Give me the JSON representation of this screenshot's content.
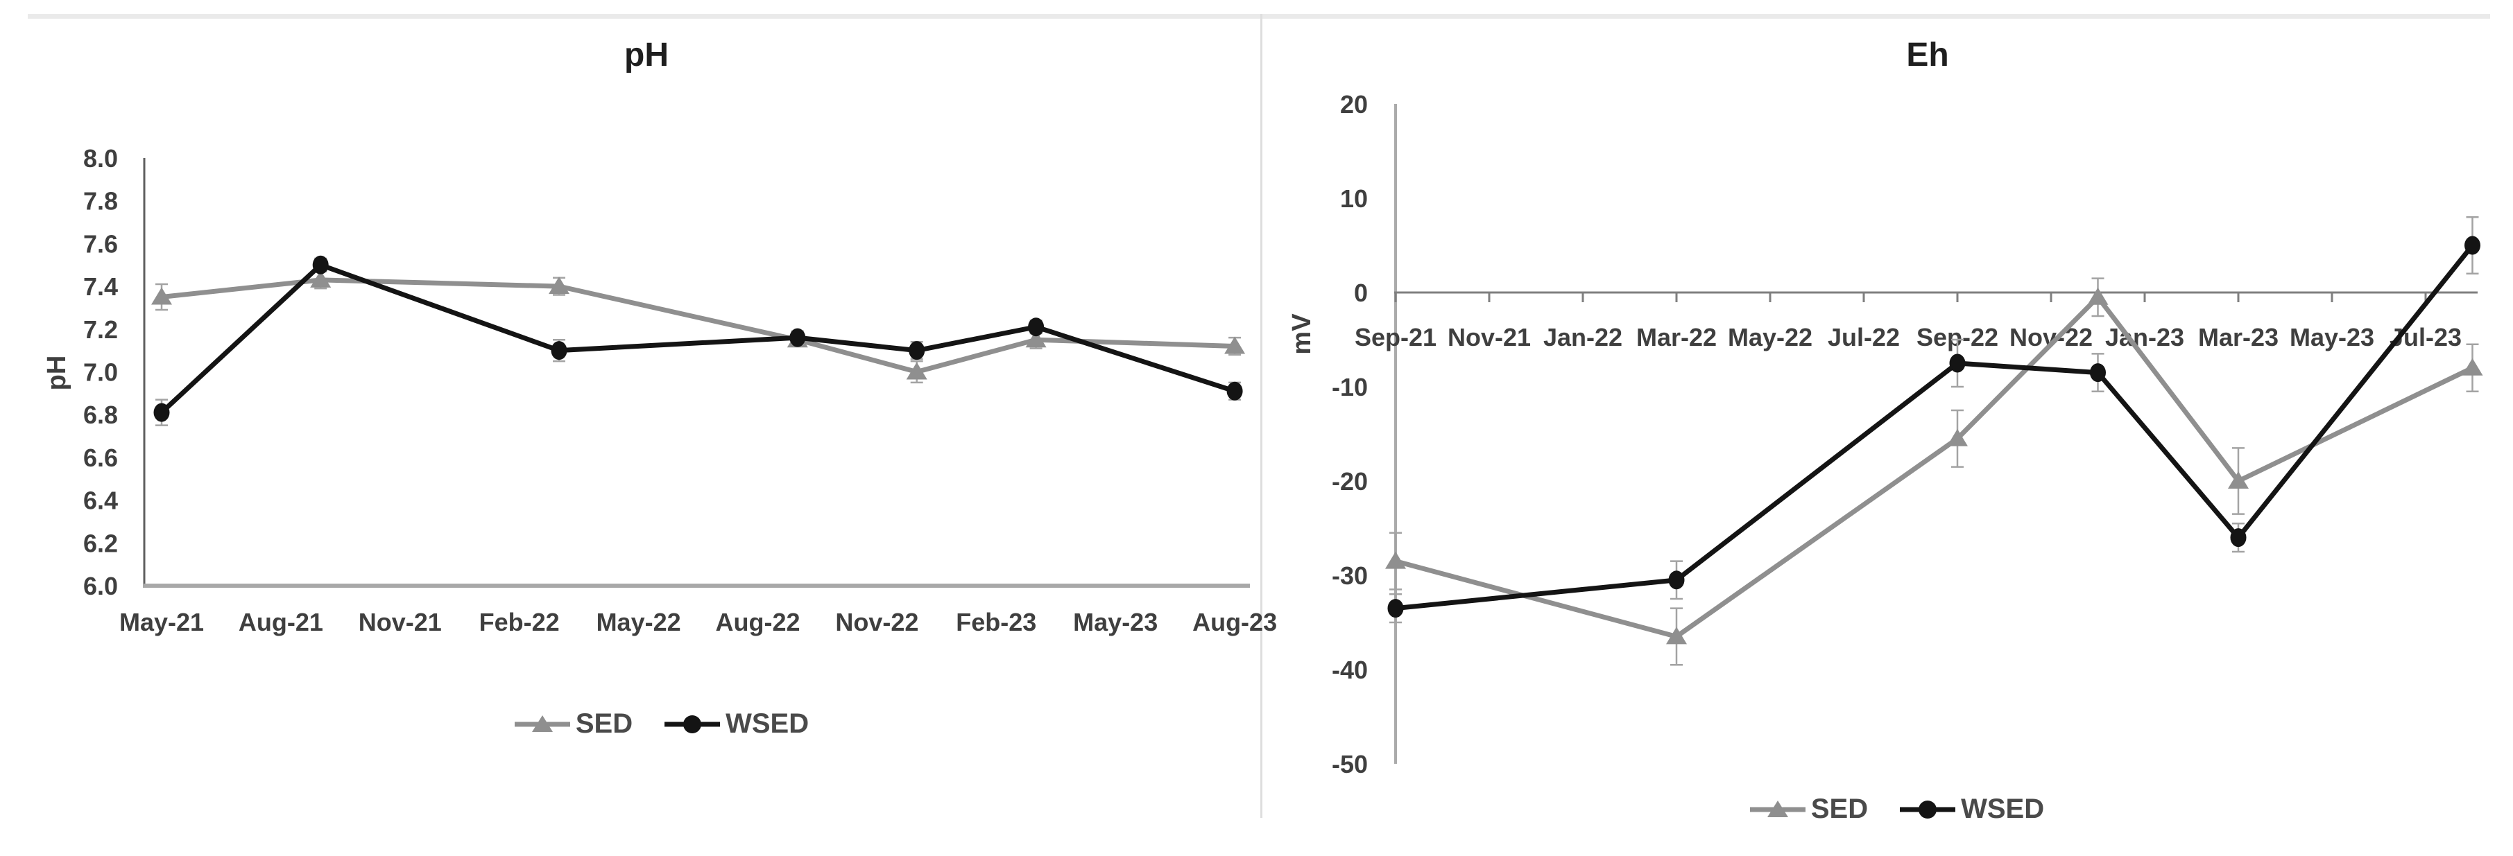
{
  "page": {
    "background": "#ffffff",
    "top_border_color": "#eaeaea",
    "panel_divider_color": "#dedede",
    "tick_label_color": "#3f3f3f",
    "title_color": "#1f1f1f",
    "error_bar_color": "#a3a3a3"
  },
  "chart_data": [
    {
      "type": "line",
      "title": "pH",
      "y_axis_title": "pH",
      "xlabel": "",
      "ylim": [
        6.0,
        8.0
      ],
      "y_tick_step": 0.2,
      "grid": false,
      "legend_position": "bottom",
      "error_bars": true,
      "y_tick_labels": [
        "8.0",
        "7.8",
        "7.6",
        "7.4",
        "7.2",
        "7.0",
        "6.8",
        "6.6",
        "6.4",
        "6.2",
        "6.0"
      ],
      "x_tick_labels": [
        "May-21",
        "Aug-21",
        "Nov-21",
        "Feb-22",
        "May-22",
        "Aug-22",
        "Nov-22",
        "Feb-23",
        "May-23",
        "Aug-23"
      ],
      "x": [
        "May-21",
        "Sep-21",
        "Mar-22",
        "Sep-22",
        "Dec-22",
        "Mar-23",
        "Aug-23"
      ],
      "series": [
        {
          "name": "SED",
          "color": "#8f8f8f",
          "marker": "triangle",
          "values": [
            7.35,
            7.43,
            7.4,
            7.15,
            7.0,
            7.15,
            7.12
          ],
          "errors": [
            0.06,
            0.04,
            0.04,
            0.02,
            0.05,
            0.04,
            0.04
          ]
        },
        {
          "name": "WSED",
          "color": "#141414",
          "marker": "circle",
          "values": [
            6.81,
            7.5,
            7.1,
            7.16,
            7.1,
            7.21,
            6.91
          ],
          "errors": [
            0.06,
            0.03,
            0.05,
            0.03,
            0.04,
            0.03,
            0.04
          ]
        }
      ]
    },
    {
      "type": "line",
      "title": "Eh",
      "y_axis_title": "mV",
      "xlabel": "",
      "ylim": [
        -50,
        20
      ],
      "y_tick_step": 10,
      "grid": false,
      "legend_position": "bottom",
      "error_bars": true,
      "y_tick_labels": [
        "20",
        "10",
        "0",
        "-10",
        "-20",
        "-30",
        "-40",
        "-50"
      ],
      "x_tick_labels": [
        "Sep-21",
        "Nov-21",
        "Jan-22",
        "Mar-22",
        "May-22",
        "Jul-22",
        "Sep-22",
        "Nov-22",
        "Jan-23",
        "Mar-23",
        "May-23",
        "Jul-23"
      ],
      "x": [
        "Sep-21",
        "Mar-22",
        "Sep-22",
        "Dec-22",
        "Mar-23",
        "Aug-23"
      ],
      "series": [
        {
          "name": "SED",
          "color": "#8f8f8f",
          "marker": "triangle",
          "values": [
            -28.5,
            -36.5,
            -15.5,
            -0.5,
            -20,
            -8
          ],
          "errors": [
            3,
            3,
            3,
            2,
            3.5,
            2.5
          ]
        },
        {
          "name": "WSED",
          "color": "#141414",
          "marker": "circle",
          "values": [
            -33.5,
            -30.5,
            -7.5,
            -8.5,
            -26,
            5
          ],
          "errors": [
            1.5,
            2,
            2.5,
            2,
            1.5,
            3
          ]
        }
      ]
    }
  ]
}
